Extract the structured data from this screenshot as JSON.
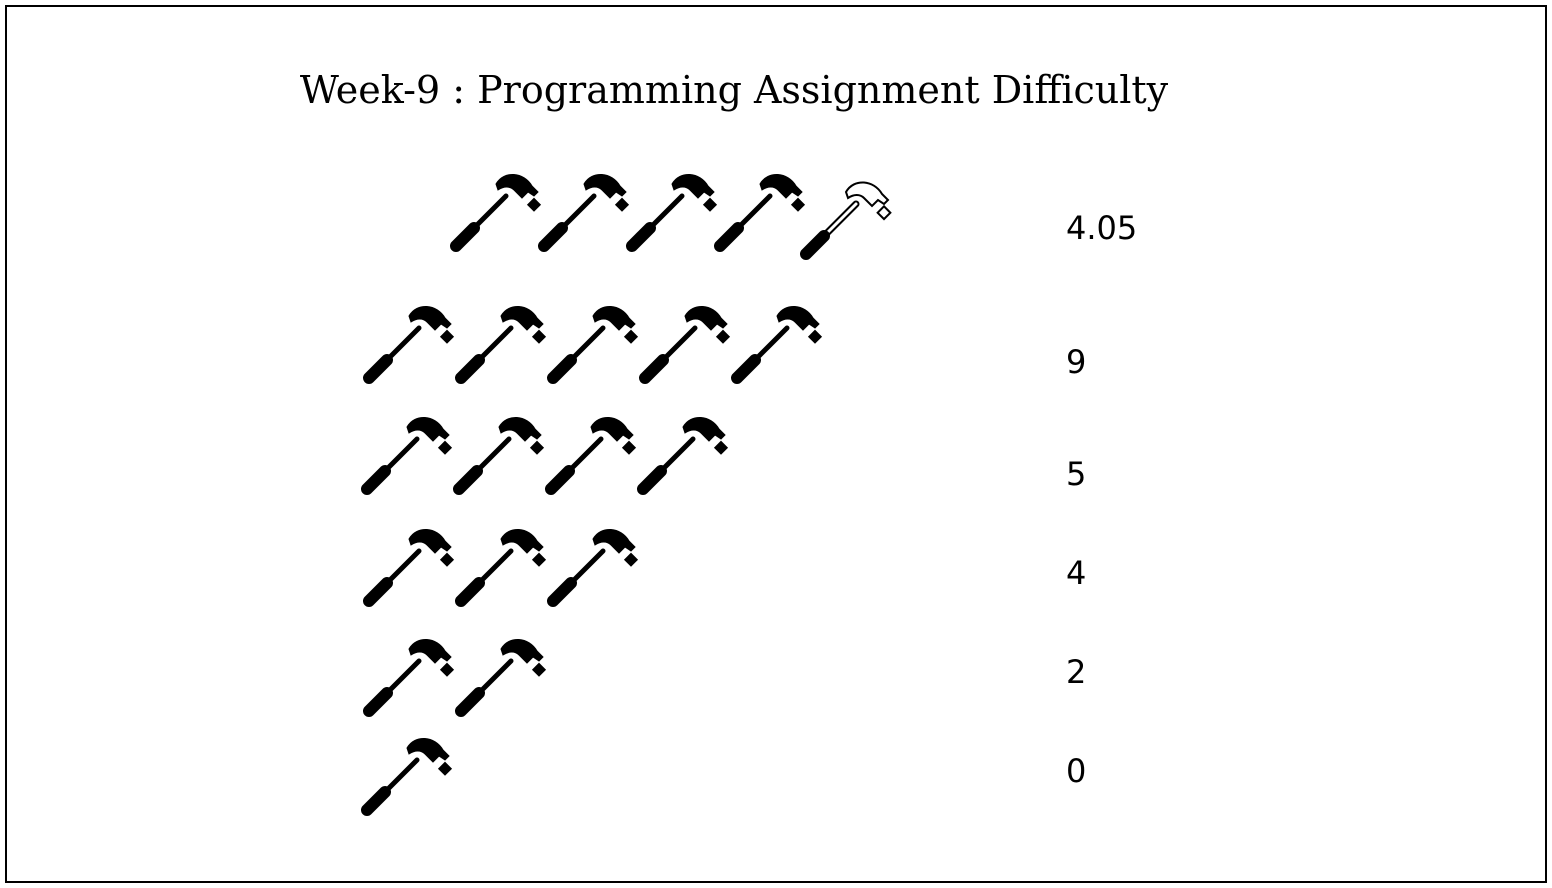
{
  "chart_data": {
    "type": "pictograph",
    "title": "Week-9 : Programming Assignment Difficulty",
    "icon": "hammer-icon",
    "rows": [
      {
        "label": "4.05",
        "icons_full": 4,
        "icons_outline": 1
      },
      {
        "label": "9",
        "icons_full": 5,
        "icons_outline": 0
      },
      {
        "label": "5",
        "icons_full": 4,
        "icons_outline": 0
      },
      {
        "label": "4",
        "icons_full": 3,
        "icons_outline": 0
      },
      {
        "label": "2",
        "icons_full": 2,
        "icons_outline": 0
      },
      {
        "label": "0",
        "icons_full": 1,
        "icons_outline": 0
      }
    ],
    "colors": {
      "icon_fill": "#000000",
      "outline_fill": "#ffffff",
      "border": "#000000"
    }
  }
}
